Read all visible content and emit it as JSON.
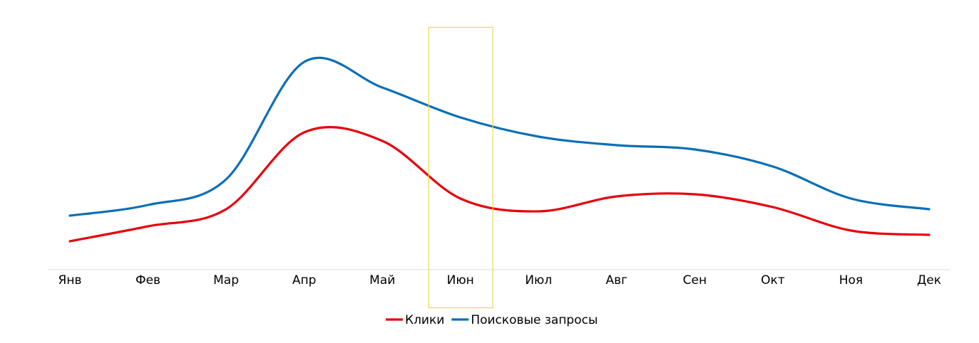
{
  "chart_data": {
    "type": "line",
    "smooth": true,
    "categories": [
      "Янв",
      "Фев",
      "Мар",
      "Апр",
      "Май",
      "Июн",
      "Июл",
      "Авг",
      "Сен",
      "Окт",
      "Ноя",
      "Дек"
    ],
    "series": [
      {
        "name": "Клики",
        "color": "#e8000b",
        "values": [
          13,
          20,
          28,
          64,
          60,
          33,
          27,
          34,
          35,
          29,
          18,
          16
        ]
      },
      {
        "name": "Поисковые запросы",
        "color": "#0a6fb5",
        "values": [
          25,
          30,
          42,
          97,
          85,
          71,
          62,
          58,
          56,
          48,
          33,
          28
        ]
      }
    ],
    "ylim": [
      0,
      110
    ],
    "grid": false,
    "y_axis_visible": false,
    "legend_position": "bottom",
    "highlight": {
      "category": "Июн",
      "color": "#f5d547"
    },
    "axis_color": "#d9d9d9"
  }
}
